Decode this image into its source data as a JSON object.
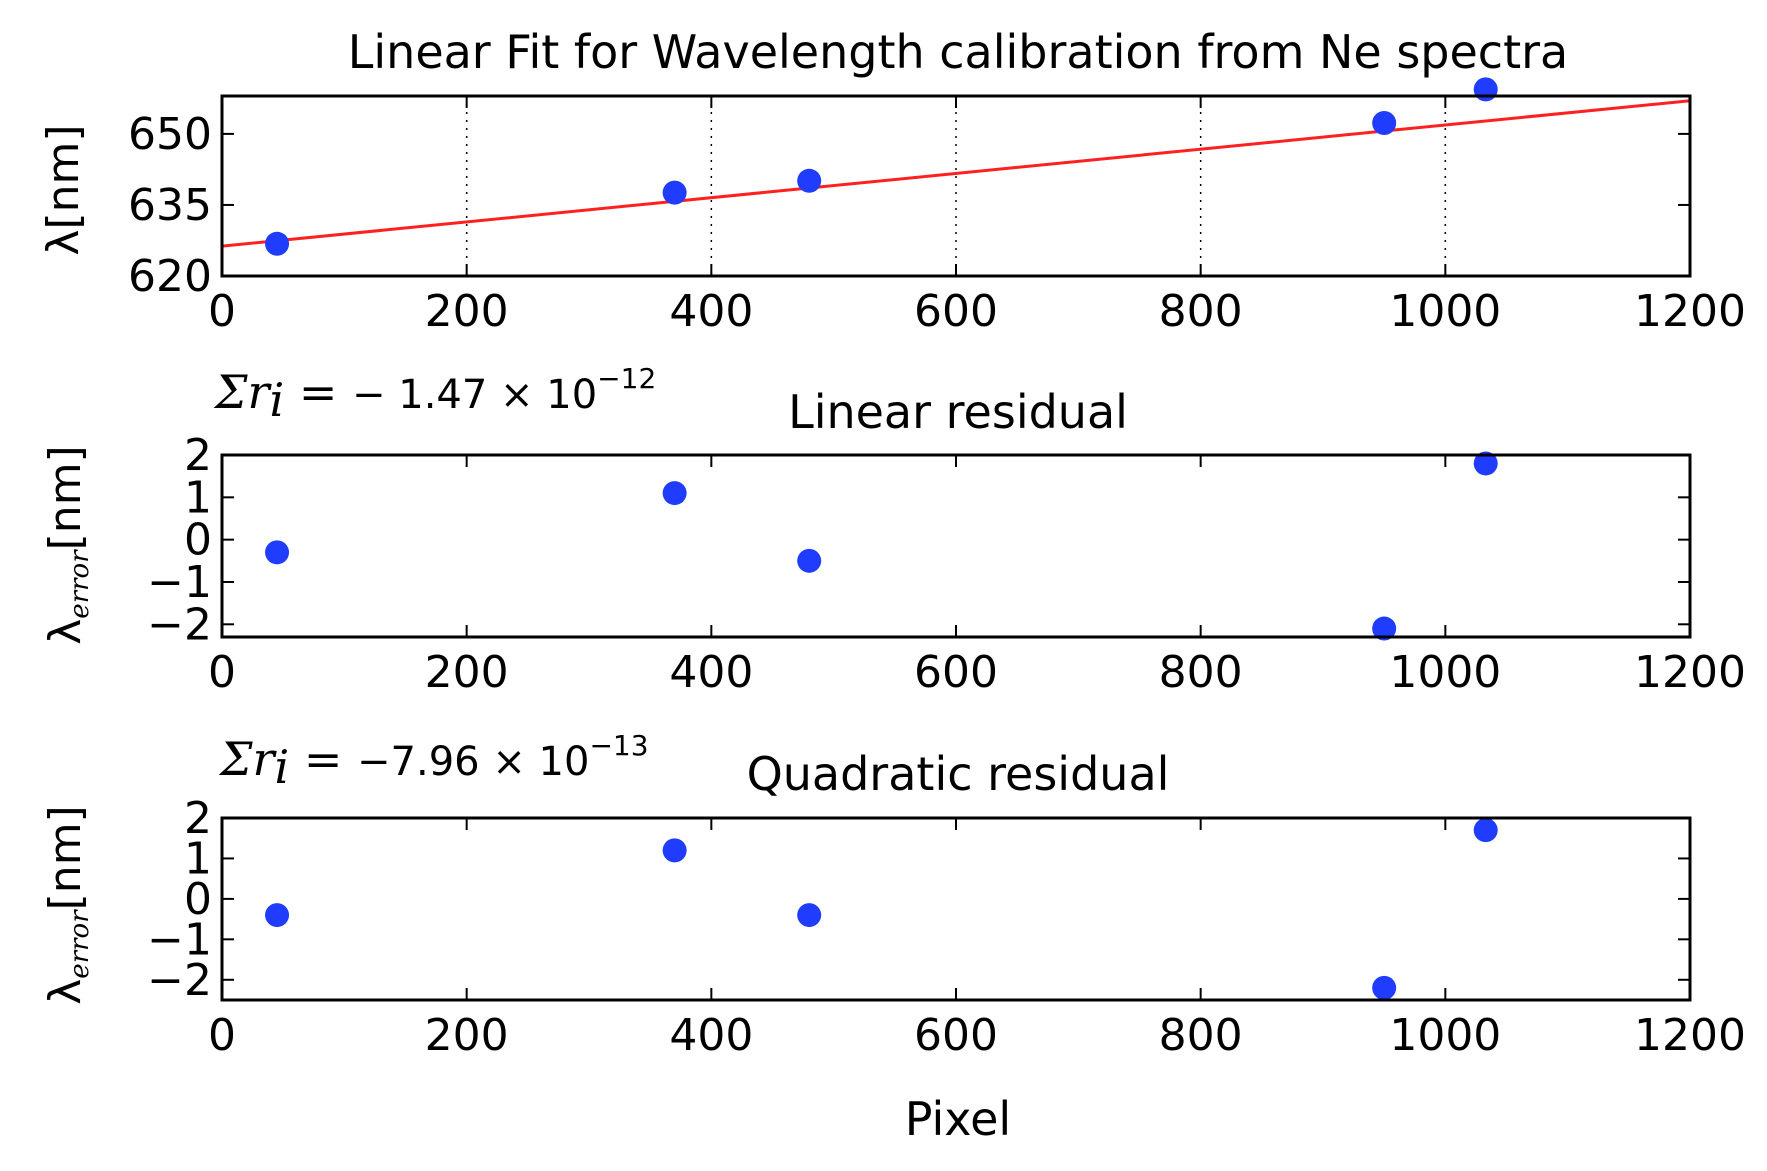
{
  "chart_data": [
    {
      "type": "scatter",
      "title": "Linear Fit for Wavelength calibration from Ne spectra",
      "ylabel": "λ[nm]",
      "xlim": [
        0,
        1200
      ],
      "ylim": [
        620,
        658
      ],
      "xticks": [
        "0",
        "200",
        "400",
        "600",
        "800",
        "1000",
        "1200"
      ],
      "yticks": [
        "620",
        "635",
        "650"
      ],
      "ytick_values": [
        620,
        635,
        650
      ],
      "grid": "vertical dotted",
      "fit_line": {
        "x": [
          0,
          1200
        ],
        "y": [
          626.3,
          657.0
        ]
      },
      "x": [
        45,
        370,
        480,
        950,
        1033
      ],
      "y": [
        626.8,
        637.6,
        640.1,
        652.3,
        659.4
      ]
    },
    {
      "type": "scatter",
      "title": "Linear residual",
      "annotation": {
        "lhs": "Σr",
        "sub": "i",
        "eq": " = ",
        "value": "− 1.47 × 10",
        "exp": "−12"
      },
      "ylabel_main": "λ",
      "ylabel_sub": "error",
      "ylabel_unit": "[nm]",
      "xlim": [
        0,
        1200
      ],
      "ylim": [
        -2.3,
        2
      ],
      "xticks": [
        "0",
        "200",
        "400",
        "600",
        "800",
        "1000",
        "1200"
      ],
      "yticks": [
        "−2",
        "−1",
        "0",
        "1",
        "2"
      ],
      "ytick_values": [
        -2,
        -1,
        0,
        1,
        2
      ],
      "x": [
        45,
        370,
        480,
        950,
        1033
      ],
      "y": [
        -0.3,
        1.1,
        -0.5,
        -2.1,
        1.8
      ]
    },
    {
      "type": "scatter",
      "title": "Quadratic residual",
      "annotation": {
        "lhs": "Σr",
        "sub": "i",
        "eq": " = ",
        "value": "−7.96 × 10",
        "exp": "−13"
      },
      "ylabel_main": "λ",
      "ylabel_sub": "error",
      "ylabel_unit": "[nm]",
      "xlim": [
        0,
        1200
      ],
      "ylim": [
        -2.5,
        2
      ],
      "xticks": [
        "0",
        "200",
        "400",
        "600",
        "800",
        "1000",
        "1200"
      ],
      "yticks": [
        "−2",
        "−1",
        "0",
        "1",
        "2"
      ],
      "ytick_values": [
        -2,
        -1,
        0,
        1,
        2
      ],
      "xlabel": "Pixel",
      "x": [
        45,
        370,
        480,
        950,
        1033
      ],
      "y": [
        -0.4,
        1.2,
        -0.4,
        -2.2,
        1.7
      ]
    }
  ],
  "colors": {
    "points": "#1f3cff",
    "fit": "#ff2020",
    "axes": "#000000"
  }
}
